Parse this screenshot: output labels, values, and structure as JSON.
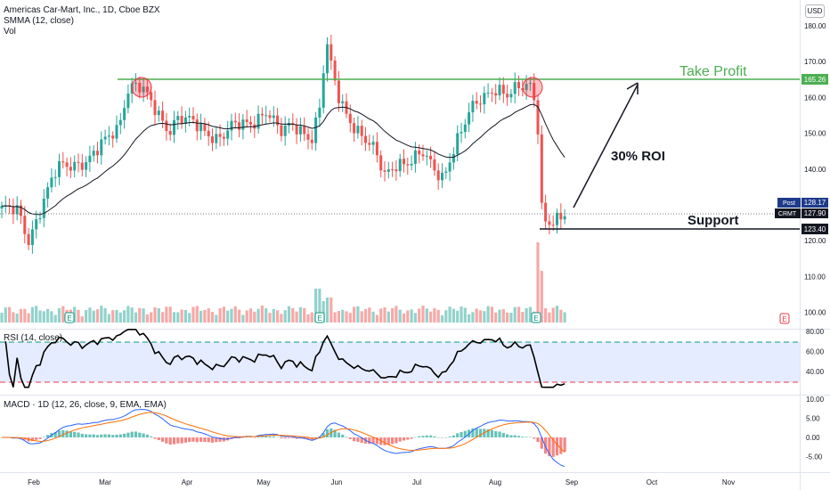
{
  "header": {
    "title": "Americas Car-Mart, Inc., 1D, Cboe BZX",
    "smma_label": "SMMA (12, close)",
    "vol_label": "Vol",
    "currency": "USD"
  },
  "annotations": {
    "take_profit": "Take Profit",
    "roi": "30% ROI",
    "support": "Support"
  },
  "price_tags": {
    "take_profit": {
      "label": "",
      "value": "165.26",
      "color": "#4caf50"
    },
    "post": {
      "label": "Post",
      "value": "128.17",
      "color": "#1e3a8a"
    },
    "crmt": {
      "label": "CRMT",
      "value": "127.90",
      "color": "#131722"
    },
    "support": {
      "label": "",
      "value": "123.40",
      "color": "#131722"
    }
  },
  "rsi": {
    "label": "RSI (14, close)"
  },
  "macd": {
    "label": "MACD · 1D (12, 26, close, 9, EMA, EMA)"
  },
  "chart_data": {
    "type": "candlestick",
    "price_axis": {
      "ticks": [
        "180.00",
        "170.00",
        "160.00",
        "150.00",
        "140.00",
        "130.00",
        "120.00",
        "110.00",
        "100.00"
      ],
      "range": [
        98,
        186
      ]
    },
    "rsi_axis": {
      "ticks": [
        "80.00",
        "60.00",
        "40.00"
      ],
      "upper": 70,
      "lower": 30,
      "range": [
        25,
        85
      ]
    },
    "macd_axis": {
      "ticks": [
        "10.00",
        "5.00",
        "0.00",
        "-5.00"
      ],
      "range": [
        -8,
        12
      ]
    },
    "time_axis": [
      "Feb",
      "Mar",
      "Apr",
      "May",
      "Jun",
      "Jul",
      "Aug",
      "Sep",
      "Oct",
      "Nov"
    ],
    "levels": {
      "take_profit": 165.26,
      "support": 123.4,
      "last": 127.9,
      "post": 128.17
    },
    "colors": {
      "up": "#26a69a",
      "down": "#ef5350",
      "take_profit": "#4caf50",
      "rsi": "#000000",
      "macd": "#2962ff",
      "signal": "#ff6d00"
    }
  }
}
